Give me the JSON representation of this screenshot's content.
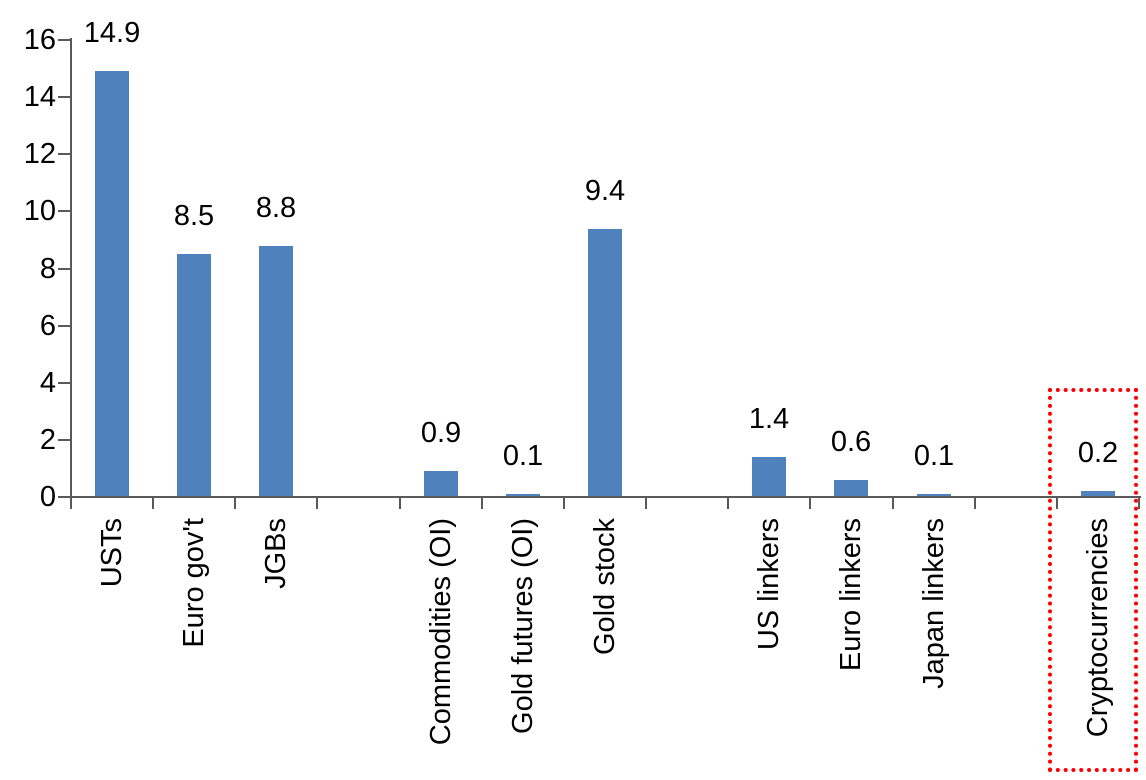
{
  "chart_data": {
    "type": "bar",
    "title": "",
    "xlabel": "",
    "ylabel": "",
    "categories": [
      "USTs",
      "Euro gov't",
      "JGBs",
      "Commodities (OI)",
      "Gold futures (OI)",
      "Gold stock",
      "US linkers",
      "Euro linkers",
      "Japan linkers",
      "Cryptocurrencies"
    ],
    "values": [
      14.9,
      8.5,
      8.8,
      0.9,
      0.1,
      9.4,
      1.4,
      0.6,
      0.1,
      0.2
    ],
    "value_labels": [
      "14.9",
      "8.5",
      "8.8",
      "0.9",
      "0.1",
      "9.4",
      "1.4",
      "0.6",
      "0.1",
      "0.2"
    ],
    "slots": [
      0,
      1,
      2,
      4,
      5,
      6,
      8,
      9,
      10,
      12
    ],
    "total_slots": 13,
    "ylim": [
      0,
      16
    ],
    "y_ticks": [
      0,
      2,
      4,
      6,
      8,
      10,
      12,
      14,
      16
    ],
    "y_tick_labels": [
      "0",
      "2",
      "4",
      "6",
      "8",
      "10",
      "12",
      "14",
      "16"
    ],
    "grid": false,
    "legend_position": "none",
    "colors": {
      "bar": "#4F81BD",
      "axis": "#595959",
      "text": "#000000",
      "highlight": "#FF0000"
    },
    "highlight": {
      "category": "Cryptocurrencies",
      "style": "red-dotted-box"
    }
  }
}
